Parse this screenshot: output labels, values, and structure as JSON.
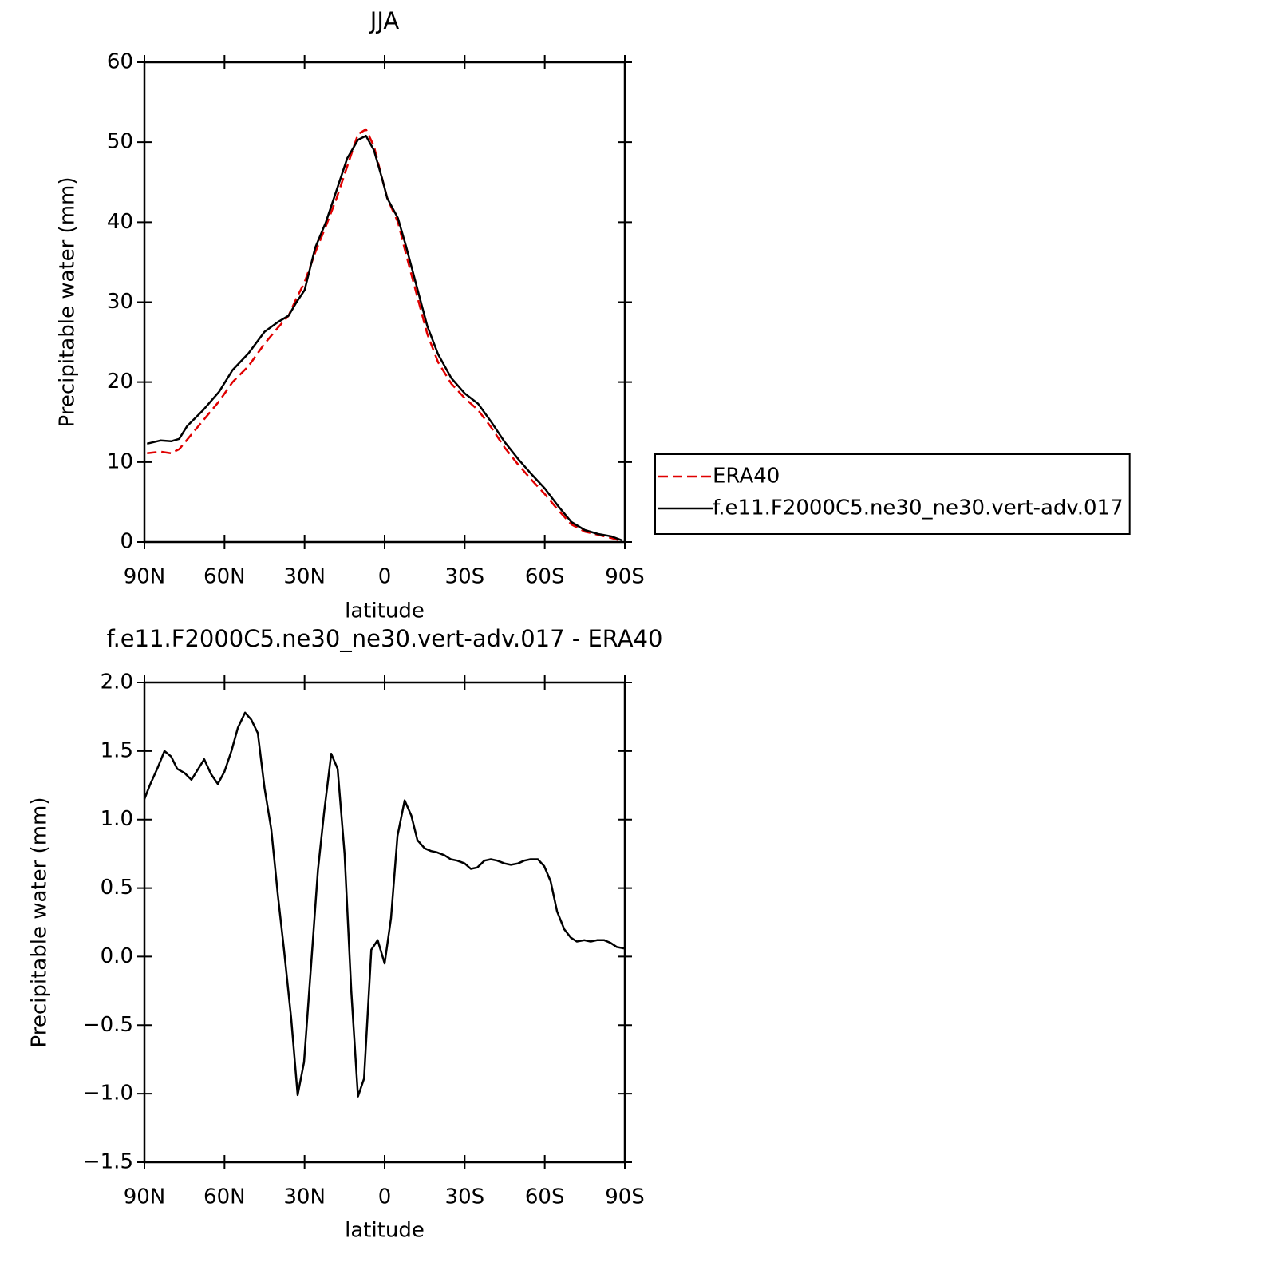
{
  "chart_data": [
    {
      "type": "line",
      "title": "JJA",
      "xlabel": "latitude",
      "ylabel": "Precipitable water (mm)",
      "x": [
        89,
        84,
        80,
        77,
        74,
        68,
        62,
        57,
        51,
        45,
        40,
        36,
        33,
        30,
        26,
        22,
        18,
        14,
        10,
        7,
        4,
        1,
        -1,
        -5,
        -8,
        -12,
        -16,
        -20,
        -25,
        -30,
        -35,
        -40,
        -45,
        -50,
        -55,
        -60,
        -65,
        -70,
        -75,
        -80,
        -85,
        -89
      ],
      "series": [
        {
          "name": "ERA40",
          "color": "#e00000",
          "dashed": true,
          "values": [
            11.1,
            11.3,
            11.1,
            11.6,
            12.8,
            15.2,
            17.6,
            20.0,
            22.0,
            24.8,
            26.8,
            28.3,
            30.5,
            32.5,
            36.2,
            39.5,
            43,
            47,
            51,
            51.6,
            49.5,
            45.5,
            43,
            40,
            36,
            31,
            26,
            22.5,
            19.8,
            18,
            16.5,
            14.3,
            11.8,
            9.7,
            7.8,
            6.0,
            4.0,
            2.2,
            1.3,
            0.9,
            0.5,
            0.1
          ]
        },
        {
          "name": "f.e11.F2000C5.ne30_ne30.vert-adv.017",
          "color": "#000000",
          "dashed": false,
          "values": [
            12.3,
            12.7,
            12.6,
            12.9,
            14.5,
            16.5,
            18.8,
            21.5,
            23.6,
            26.3,
            27.5,
            28.3,
            30,
            31.5,
            36.8,
            40,
            44,
            48,
            50.3,
            50.8,
            49,
            45.5,
            43,
            40.5,
            37,
            32,
            27,
            23.5,
            20.5,
            18.6,
            17.3,
            15,
            12.5,
            10.4,
            8.5,
            6.7,
            4.5,
            2.5,
            1.5,
            1.0,
            0.7,
            0.2
          ]
        }
      ],
      "xlim": [
        90,
        -90
      ],
      "xticks": [
        {
          "value": 90,
          "label": "90N"
        },
        {
          "value": 60,
          "label": "60N"
        },
        {
          "value": 30,
          "label": "30N"
        },
        0,
        {
          "value": -30,
          "label": "30S"
        },
        {
          "value": -60,
          "label": "60S"
        },
        {
          "value": -90,
          "label": "90S"
        }
      ],
      "ylim": [
        0,
        60
      ],
      "yticks": [
        0,
        10,
        20,
        30,
        40,
        50,
        60
      ],
      "legend": "right"
    },
    {
      "type": "line",
      "title": "f.e11.F2000C5.ne30_ne30.vert-adv.017 - ERA40",
      "xlabel": "latitude",
      "ylabel": "Precipitable water (mm)",
      "x": [
        90,
        88,
        85,
        82.5,
        80,
        77.7,
        75,
        72.4,
        67.6,
        65,
        62.5,
        60,
        57.4,
        55,
        52.3,
        50,
        47.5,
        45,
        42.5,
        40,
        37.7,
        35,
        32.6,
        30.2,
        27.5,
        25,
        22.7,
        20,
        17.6,
        15,
        12.5,
        10,
        7.7,
        5,
        2.6,
        0,
        -2.4,
        -4.8,
        -7.5,
        -10,
        -12.3,
        -15,
        -17.4,
        -19.7,
        -22.4,
        -24.8,
        -27.2,
        -30,
        -32.3,
        -34.7,
        -37.4,
        -39.8,
        -42.2,
        -44.9,
        -47.3,
        -50,
        -52.3,
        -54.7,
        -57.4,
        -59.8,
        -62.2,
        -64.6,
        -67.3,
        -69.7,
        -72,
        -74.8,
        -77.2,
        -79.6,
        -82.3,
        -84.7,
        -87,
        -89.7
      ],
      "series": [
        {
          "color": "#000000",
          "dashed": false,
          "values": [
            1.15,
            1.25,
            1.38,
            1.5,
            1.46,
            1.37,
            1.34,
            1.29,
            1.44,
            1.33,
            1.26,
            1.35,
            1.5,
            1.67,
            1.78,
            1.73,
            1.63,
            1.23,
            0.93,
            0.45,
            0.05,
            -0.45,
            -1.01,
            -0.77,
            -0.05,
            0.63,
            1.05,
            1.48,
            1.37,
            0.75,
            -0.25,
            -1.02,
            -0.89,
            0.05,
            0.12,
            -0.05,
            0.28,
            0.88,
            1.14,
            1.03,
            0.85,
            0.79,
            0.77,
            0.76,
            0.74,
            0.71,
            0.7,
            0.68,
            0.64,
            0.65,
            0.7,
            0.71,
            0.7,
            0.68,
            0.67,
            0.68,
            0.7,
            0.71,
            0.71,
            0.66,
            0.55,
            0.33,
            0.2,
            0.14,
            0.11,
            0.12,
            0.11,
            0.12,
            0.12,
            0.1,
            0.07,
            0.06
          ]
        }
      ],
      "xlim": [
        90,
        -90
      ],
      "xticks": [
        {
          "value": 90,
          "label": "90N"
        },
        {
          "value": 60,
          "label": "60N"
        },
        {
          "value": 30,
          "label": "30N"
        },
        0,
        {
          "value": -30,
          "label": "30S"
        },
        {
          "value": -60,
          "label": "60S"
        },
        {
          "value": -90,
          "label": "90S"
        }
      ],
      "ylim": [
        -1.5,
        2.0
      ],
      "yticks": [
        {
          "value": -1.5,
          "label": "−1.5"
        },
        {
          "value": -1.0,
          "label": "−1.0"
        },
        {
          "value": -0.5,
          "label": "−0.5"
        },
        {
          "value": 0.0,
          "label": "0.0"
        },
        0.5,
        {
          "value": 1.0,
          "label": "1.0"
        },
        {
          "value": 1.5,
          "label": "1.5"
        },
        {
          "value": 2.0,
          "label": "2.0"
        }
      ]
    }
  ]
}
